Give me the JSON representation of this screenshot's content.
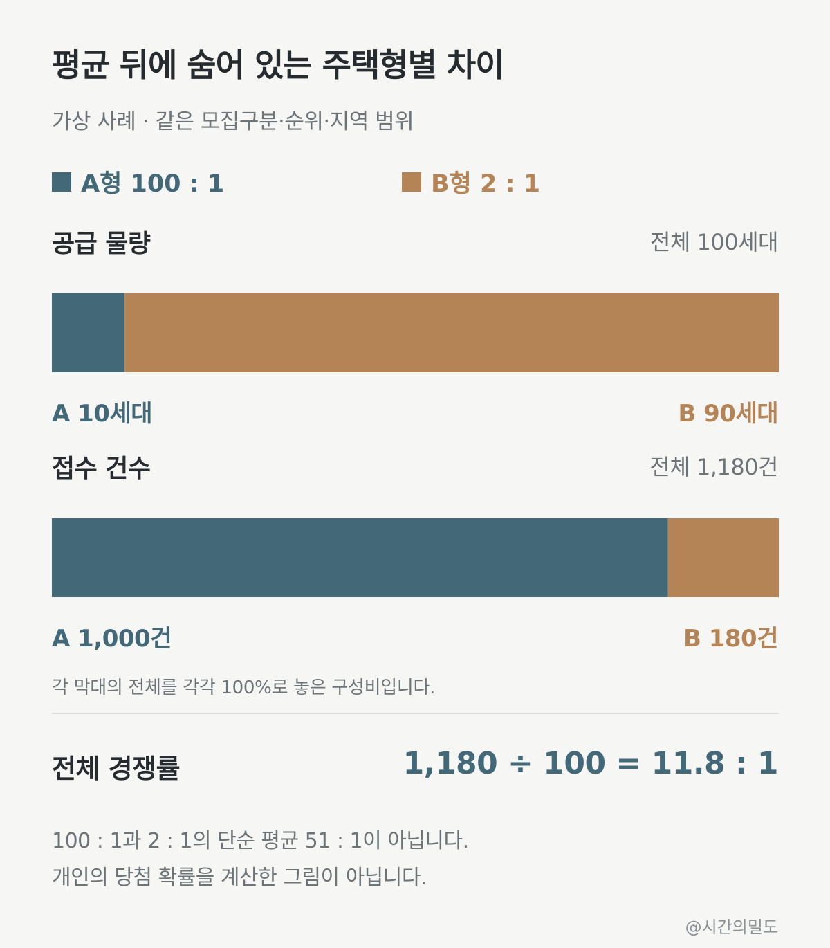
{
  "title": "평균 뒤에 숨어 있는 주택형별 차이",
  "subtitle": "가상 사례 · 같은 모집구분·순위·지역 범위",
  "legend": {
    "a": "A형 100 : 1",
    "b": "B형 2 : 1"
  },
  "colors": {
    "a": "#436878",
    "b": "#b58456"
  },
  "sections": {
    "supply": {
      "title": "공급 물량",
      "total": "전체 100세대",
      "label_a": "A 10세대",
      "label_b": "B 90세대"
    },
    "applications": {
      "title": "접수 건수",
      "total": "전체 1,180건",
      "label_a": "A 1,000건",
      "label_b": "B 180건"
    }
  },
  "chart_data": [
    {
      "type": "bar",
      "stacked": true,
      "orientation": "horizontal",
      "title": "공급 물량",
      "unit": "세대",
      "total": 100,
      "series": [
        {
          "name": "A형",
          "value": 10
        },
        {
          "name": "B형",
          "value": 90
        }
      ]
    },
    {
      "type": "bar",
      "stacked": true,
      "orientation": "horizontal",
      "title": "접수 건수",
      "unit": "건",
      "total": 1180,
      "series": [
        {
          "name": "A형",
          "value": 1000
        },
        {
          "name": "B형",
          "value": 180
        }
      ]
    }
  ],
  "note": "각 막대의 전체를 각각 100%로 놓은 구성비입니다.",
  "overall": {
    "label": "전체 경쟁률",
    "equation": "1,180 ÷ 100 = 11.8 : 1"
  },
  "footnotes": [
    "100 : 1과 2 : 1의 단순 평균 51 : 1이 아닙니다.",
    "개인의 당첨 확률을 계산한 그림이 아닙니다."
  ],
  "credit": "@시간의밀도"
}
